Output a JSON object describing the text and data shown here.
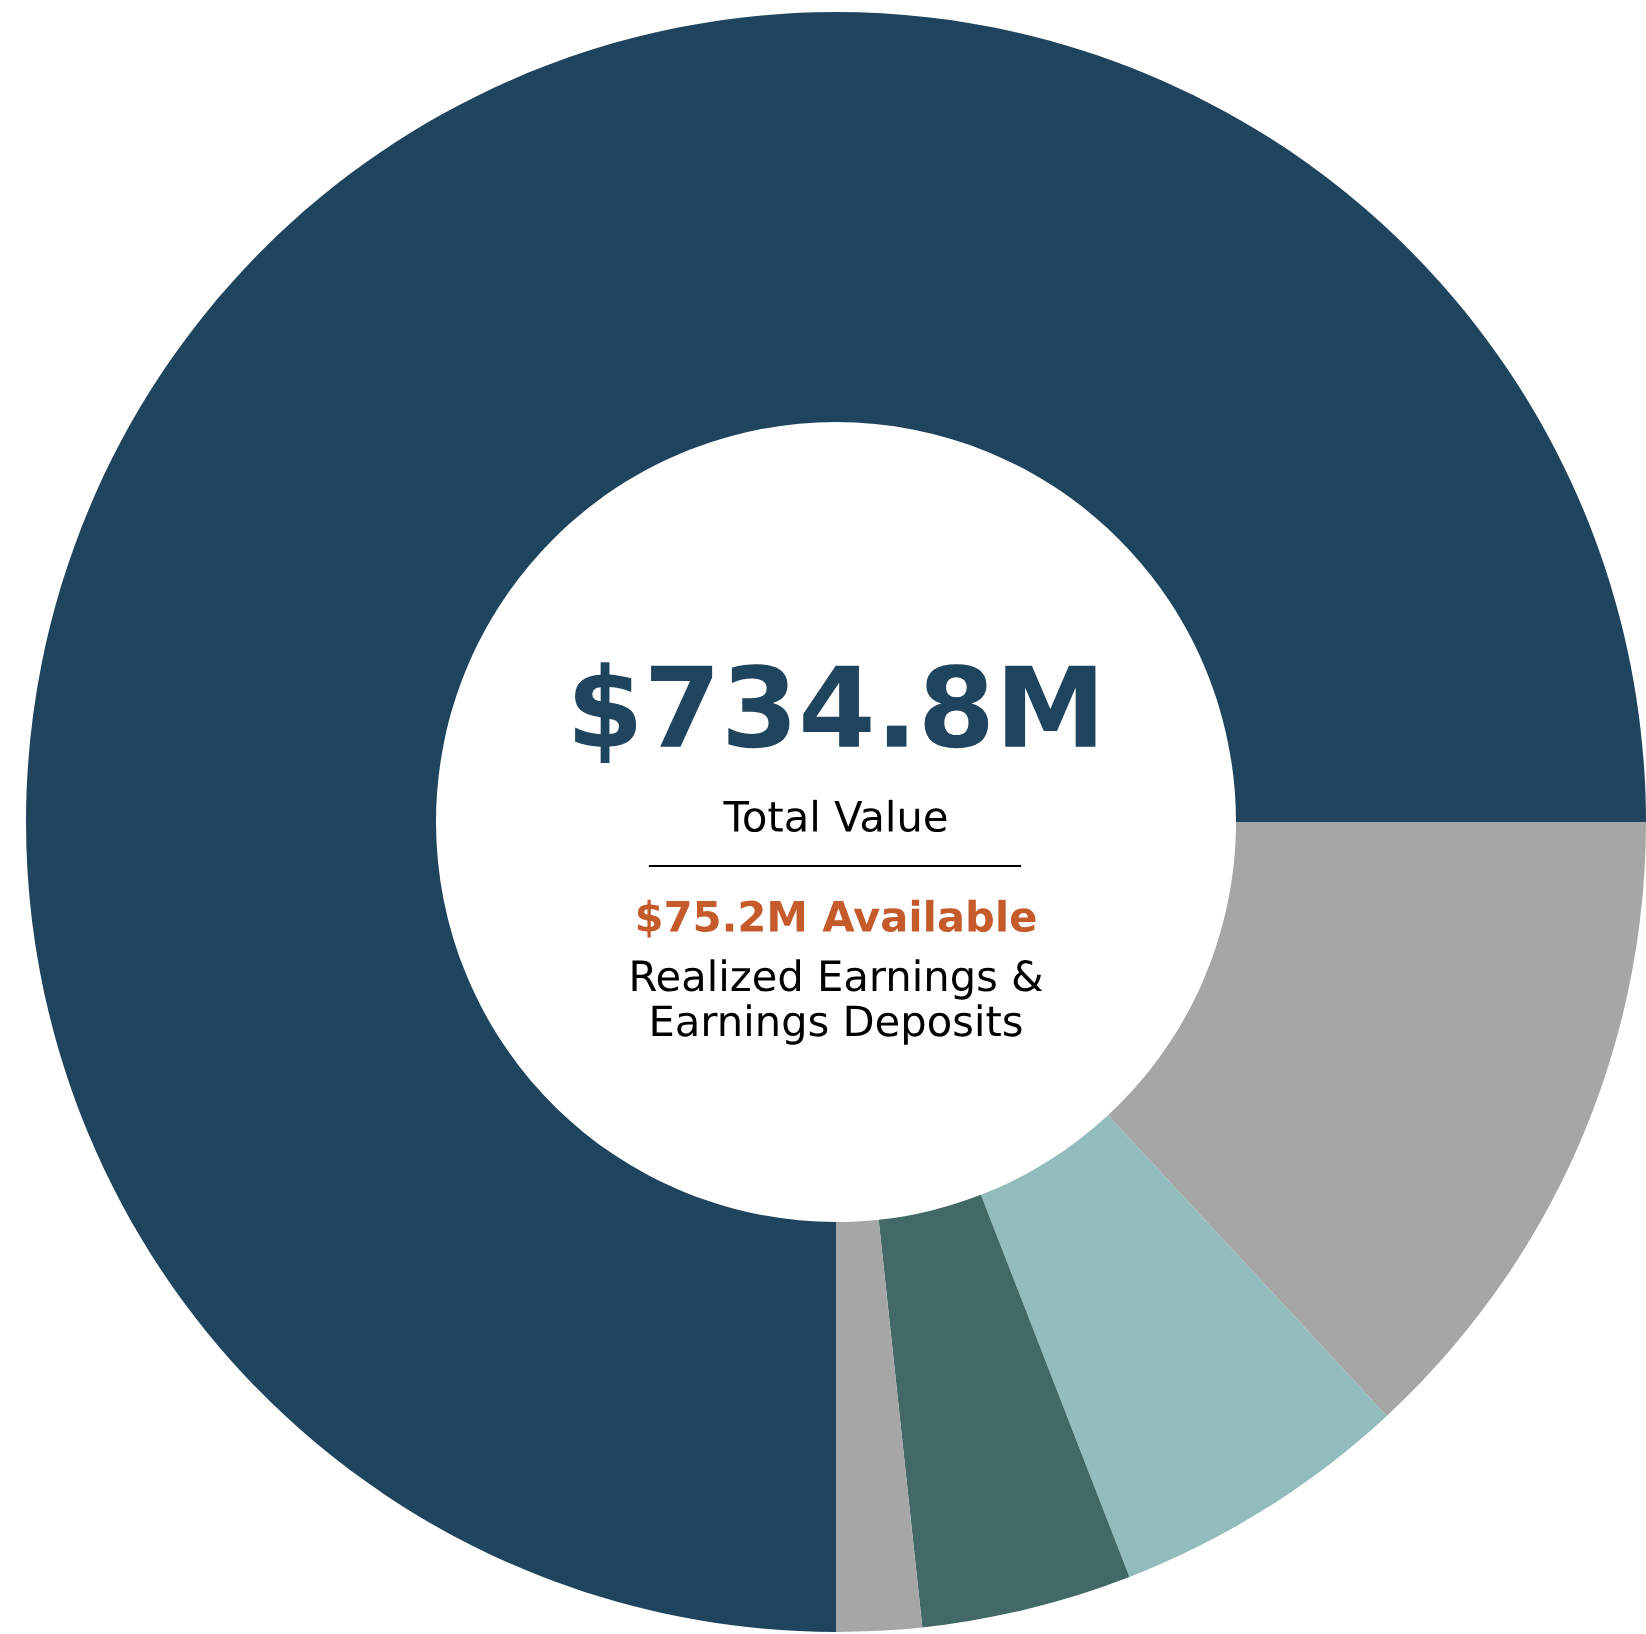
{
  "chart_data": {
    "type": "donut",
    "title": "$734.8M",
    "subtitle": "Total Value",
    "categories": [
      null,
      null,
      null,
      null,
      null
    ],
    "values": [
      13.1,
      6.0,
      4.2,
      1.7,
      75.0
    ],
    "colors": [
      "#a6a6a6",
      "#93bcbc",
      "#426966",
      "#a6a6a6",
      "#1f445e"
    ],
    "annotations": [
      "$75.2M Available",
      "Realized Earnings &\nEarnings Deposits"
    ]
  }
}
